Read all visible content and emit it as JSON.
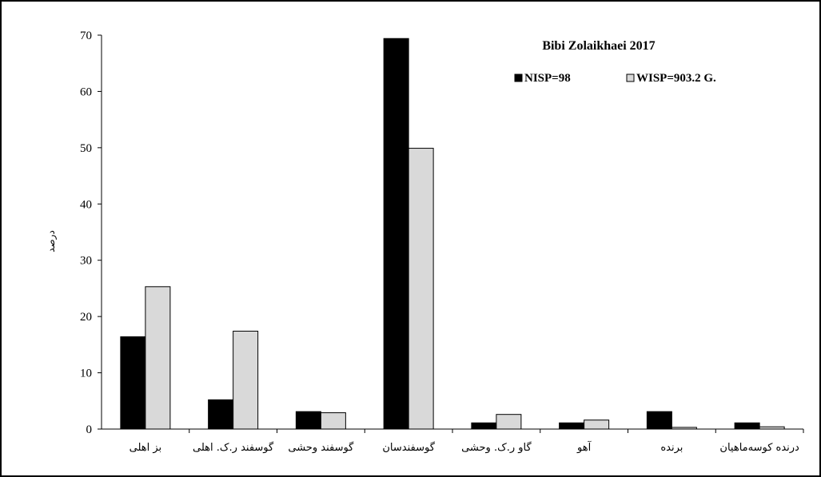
{
  "chart_data": {
    "type": "bar",
    "title": "Bibi Zolaikhaei 2017",
    "ylabel": "درصد",
    "xlabel": "",
    "ylim": [
      0,
      70
    ],
    "yticks": [
      0,
      10,
      20,
      30,
      40,
      50,
      60,
      70
    ],
    "legend_position": "top-right",
    "grid": false,
    "categories": [
      "بز اهلی",
      "گوسفند ر.ک. اهلی",
      "گوسفند وحشی",
      "گوسفندسان",
      "گاو ر.ک. وحشی",
      "آهو",
      "برنده",
      "درنده کوسه‌ماهیان"
    ],
    "series": [
      {
        "name": "NISP=98",
        "color": "#000000",
        "values": [
          16.4,
          5.2,
          3.1,
          69.4,
          1.1,
          1.1,
          3.1,
          1.1
        ]
      },
      {
        "name": "WISP=903.2 G.",
        "color": "#d9d9d9",
        "values": [
          25.3,
          17.4,
          2.9,
          49.9,
          2.6,
          1.6,
          0.3,
          0.4
        ]
      }
    ]
  }
}
